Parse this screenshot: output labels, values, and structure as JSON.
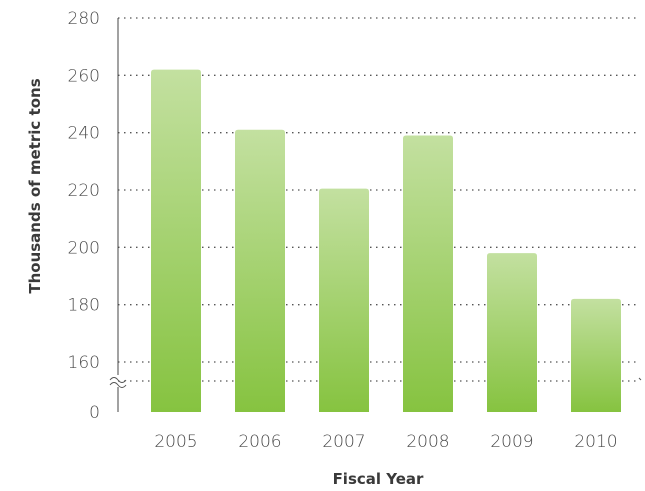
{
  "chart_data": {
    "type": "bar",
    "xlabel": "Fiscal Year",
    "ylabel": "Thousands of metric tons",
    "categories": [
      "2005",
      "2006",
      "2007",
      "2008",
      "2009",
      "2010"
    ],
    "values": [
      262,
      241,
      220.5,
      239,
      198,
      182
    ],
    "ylim": [
      160,
      280
    ],
    "yticks": [
      160,
      180,
      200,
      220,
      240,
      260,
      280
    ],
    "axis_break": true,
    "baseline_label": "0",
    "grid": true,
    "bar_color_top": "#c3e0a0",
    "bar_color_bottom": "#86c340"
  }
}
